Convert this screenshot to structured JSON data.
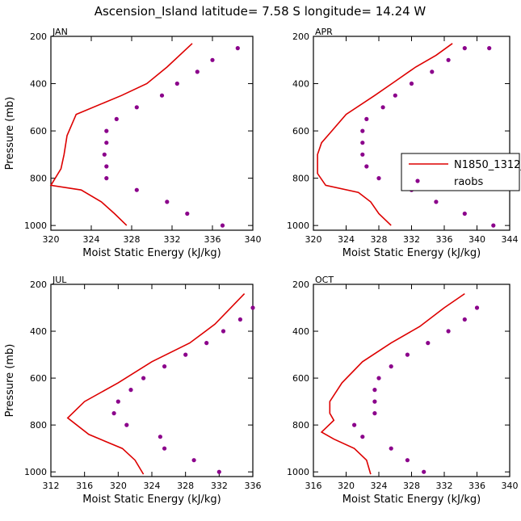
{
  "figure_title": "Ascension_Island   latitude= 7.58 S longitude= 14.24 W",
  "colors": {
    "model": "#dd0000",
    "obs": "#8b008b"
  },
  "legend": {
    "model_label": "N1850_1312_f1",
    "obs_label": "raobs"
  },
  "chart_data": [
    {
      "type": "line",
      "month": "JAN",
      "xlabel": "Moist Static Energy (kJ/kg)",
      "ylabel": "Pressure (mb)",
      "xlim": [
        320,
        340
      ],
      "ylim": [
        1020,
        200
      ],
      "xticks": [
        320,
        324,
        328,
        332,
        336,
        340
      ],
      "yticks": [
        200,
        400,
        600,
        800,
        1000
      ],
      "series": [
        {
          "name": "N1850_1312_f1",
          "style": "line",
          "x": [
            327.5,
            326.3,
            325.0,
            323.0,
            320.0,
            321.0,
            321.3,
            321.6,
            322.5,
            327.0,
            329.5,
            331.5,
            334.0
          ],
          "y": [
            1000,
            950,
            900,
            850,
            830,
            760,
            700,
            620,
            530,
            450,
            400,
            330,
            230
          ]
        },
        {
          "name": "raobs",
          "style": "points",
          "x": [
            337.0,
            333.5,
            331.5,
            328.5,
            325.5,
            325.5,
            325.3,
            325.5,
            325.5,
            326.5,
            328.5,
            331.0,
            332.5,
            334.5,
            336.0,
            338.5
          ],
          "y": [
            1000,
            950,
            900,
            850,
            800,
            750,
            700,
            650,
            600,
            550,
            500,
            450,
            400,
            350,
            300,
            250
          ]
        }
      ]
    },
    {
      "type": "line",
      "month": "APR",
      "xlabel": "Moist Static Energy (kJ/kg)",
      "ylabel": "",
      "xlim": [
        320,
        344
      ],
      "ylim": [
        1020,
        200
      ],
      "xticks": [
        320,
        324,
        328,
        332,
        336,
        340,
        344
      ],
      "yticks": [
        200,
        400,
        600,
        800,
        1000
      ],
      "series": [
        {
          "name": "N1850_1312_f1",
          "style": "line",
          "x": [
            329.5,
            328.0,
            327.0,
            325.5,
            321.5,
            320.5,
            320.5,
            321.0,
            322.0,
            324.0,
            327.5,
            330.0,
            332.5,
            335.0,
            337.0
          ],
          "y": [
            1000,
            950,
            900,
            860,
            830,
            780,
            700,
            650,
            610,
            530,
            450,
            390,
            330,
            280,
            230
          ]
        },
        {
          "name": "raobs",
          "style": "points",
          "x": [
            342.0,
            338.5,
            335.0,
            332.0,
            328.0,
            326.5,
            326.0,
            326.0,
            326.0,
            326.5,
            328.5,
            330.0,
            332.0,
            334.5,
            336.5,
            338.5,
            341.5
          ],
          "y": [
            1000,
            950,
            900,
            850,
            800,
            750,
            700,
            650,
            600,
            550,
            500,
            450,
            400,
            350,
            300,
            250,
            250
          ]
        }
      ]
    },
    {
      "type": "line",
      "month": "JUL",
      "xlabel": "Moist Static Energy (kJ/kg)",
      "ylabel": "Pressure (mb)",
      "xlim": [
        312,
        336
      ],
      "ylim": [
        1020,
        200
      ],
      "xticks": [
        312,
        316,
        320,
        324,
        328,
        332,
        336
      ],
      "yticks": [
        200,
        400,
        600,
        800,
        1000
      ],
      "series": [
        {
          "name": "N1850_1312_f1",
          "style": "line",
          "x": [
            323.0,
            322.0,
            320.5,
            316.5,
            314.0,
            316.0,
            320.0,
            324.0,
            328.5,
            331.5,
            335.0
          ],
          "y": [
            1010,
            950,
            900,
            840,
            770,
            700,
            620,
            530,
            450,
            370,
            240
          ]
        },
        {
          "name": "raobs",
          "style": "points",
          "x": [
            332.0,
            329.0,
            325.5,
            325.0,
            321.0,
            319.5,
            320.0,
            321.5,
            323.0,
            325.5,
            328.0,
            330.5,
            332.5,
            334.5,
            336.0
          ],
          "y": [
            1000,
            950,
            900,
            850,
            800,
            750,
            700,
            650,
            600,
            550,
            500,
            450,
            400,
            350,
            300
          ]
        }
      ]
    },
    {
      "type": "line",
      "month": "OCT",
      "xlabel": "Moist Static Energy (kJ/kg)",
      "ylabel": "",
      "xlim": [
        316,
        340
      ],
      "ylim": [
        1020,
        200
      ],
      "xticks": [
        316,
        320,
        324,
        328,
        332,
        336,
        340
      ],
      "yticks": [
        200,
        400,
        600,
        800,
        1000
      ],
      "series": [
        {
          "name": "N1850_1312_f1",
          "style": "line",
          "x": [
            323.0,
            322.5,
            321.0,
            318.5,
            317.0,
            318.5,
            318.0,
            318.0,
            319.5,
            322.0,
            325.5,
            329.0,
            332.0,
            334.5
          ],
          "y": [
            1010,
            950,
            900,
            860,
            830,
            780,
            750,
            700,
            620,
            530,
            450,
            380,
            300,
            240
          ]
        },
        {
          "name": "raobs",
          "style": "points",
          "x": [
            329.5,
            327.5,
            325.5,
            322.0,
            321.0,
            323.5,
            323.5,
            323.5,
            324.0,
            325.5,
            327.5,
            330.0,
            332.5,
            334.5,
            336.0
          ],
          "y": [
            1000,
            950,
            900,
            850,
            800,
            750,
            700,
            650,
            600,
            550,
            500,
            450,
            400,
            350,
            300
          ]
        }
      ]
    }
  ]
}
